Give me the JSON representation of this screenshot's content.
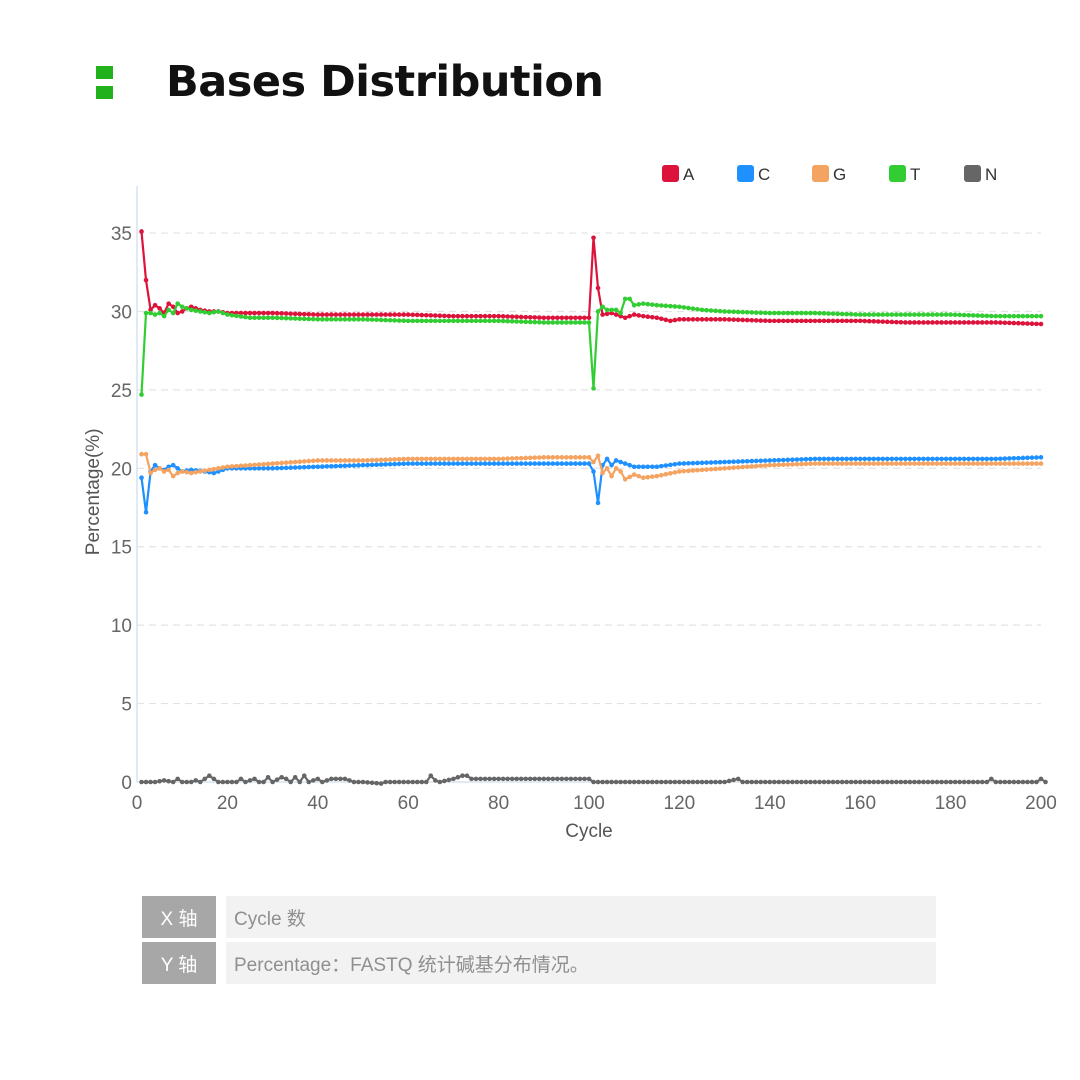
{
  "header": {
    "title": "Bases Distribution",
    "accent_color": "#21b11c"
  },
  "axis_info": [
    {
      "key": "X 轴",
      "value": "Cycle 数"
    },
    {
      "key": "Y 轴",
      "value": "Percentage：FASTQ 统计碱基分布情况。"
    }
  ],
  "chart_data": {
    "type": "line",
    "title": "",
    "xlabel": "Cycle",
    "ylabel": "Percentage(%)",
    "xlim": [
      0,
      200
    ],
    "ylim": [
      0,
      38
    ],
    "xticks": [
      0,
      20,
      40,
      60,
      80,
      100,
      120,
      140,
      160,
      180,
      200
    ],
    "yticks": [
      0,
      5,
      10,
      15,
      20,
      25,
      30,
      35
    ],
    "grid": "horizontal dashed",
    "legend_position": "top-right",
    "series": [
      {
        "name": "A",
        "color": "#dc143c",
        "points": [
          [
            1,
            35.1
          ],
          [
            2,
            32.0
          ],
          [
            3,
            30.1
          ],
          [
            4,
            30.4
          ],
          [
            5,
            30.2
          ],
          [
            6,
            29.9
          ],
          [
            7,
            30.5
          ],
          [
            8,
            30.3
          ],
          [
            9,
            29.9
          ],
          [
            10,
            30.0
          ],
          [
            11,
            30.2
          ],
          [
            12,
            30.3
          ],
          [
            14,
            30.1
          ],
          [
            16,
            30.0
          ],
          [
            18,
            30.0
          ],
          [
            20,
            29.9
          ],
          [
            25,
            29.9
          ],
          [
            30,
            29.9
          ],
          [
            40,
            29.8
          ],
          [
            50,
            29.8
          ],
          [
            60,
            29.8
          ],
          [
            70,
            29.7
          ],
          [
            80,
            29.7
          ],
          [
            90,
            29.6
          ],
          [
            100,
            29.6
          ],
          [
            101,
            34.7
          ],
          [
            102,
            31.5
          ],
          [
            103,
            29.8
          ],
          [
            105,
            29.9
          ],
          [
            107,
            29.7
          ],
          [
            108,
            29.6
          ],
          [
            110,
            29.8
          ],
          [
            112,
            29.7
          ],
          [
            115,
            29.6
          ],
          [
            118,
            29.4
          ],
          [
            120,
            29.5
          ],
          [
            130,
            29.5
          ],
          [
            140,
            29.4
          ],
          [
            150,
            29.4
          ],
          [
            160,
            29.4
          ],
          [
            170,
            29.3
          ],
          [
            180,
            29.3
          ],
          [
            190,
            29.3
          ],
          [
            200,
            29.2
          ]
        ]
      },
      {
        "name": "C",
        "color": "#1e90ff",
        "points": [
          [
            1,
            19.4
          ],
          [
            2,
            17.2
          ],
          [
            3,
            19.8
          ],
          [
            4,
            20.2
          ],
          [
            5,
            20.0
          ],
          [
            6,
            19.9
          ],
          [
            7,
            20.1
          ],
          [
            8,
            20.2
          ],
          [
            9,
            20.0
          ],
          [
            10,
            19.8
          ],
          [
            12,
            19.9
          ],
          [
            15,
            19.8
          ],
          [
            17,
            19.7
          ],
          [
            20,
            20.0
          ],
          [
            30,
            20.0
          ],
          [
            40,
            20.1
          ],
          [
            50,
            20.2
          ],
          [
            60,
            20.3
          ],
          [
            70,
            20.3
          ],
          [
            80,
            20.3
          ],
          [
            90,
            20.3
          ],
          [
            100,
            20.3
          ],
          [
            101,
            19.8
          ],
          [
            102,
            17.8
          ],
          [
            103,
            20.2
          ],
          [
            104,
            20.6
          ],
          [
            105,
            20.2
          ],
          [
            106,
            20.5
          ],
          [
            108,
            20.3
          ],
          [
            110,
            20.1
          ],
          [
            115,
            20.1
          ],
          [
            120,
            20.3
          ],
          [
            130,
            20.4
          ],
          [
            140,
            20.5
          ],
          [
            150,
            20.6
          ],
          [
            160,
            20.6
          ],
          [
            170,
            20.6
          ],
          [
            180,
            20.6
          ],
          [
            190,
            20.6
          ],
          [
            200,
            20.7
          ]
        ]
      },
      {
        "name": "G",
        "color": "#f4a460",
        "points": [
          [
            1,
            20.9
          ],
          [
            2,
            20.9
          ],
          [
            3,
            19.7
          ],
          [
            4,
            19.9
          ],
          [
            5,
            20.0
          ],
          [
            6,
            19.8
          ],
          [
            7,
            19.9
          ],
          [
            8,
            19.5
          ],
          [
            9,
            19.7
          ],
          [
            10,
            19.8
          ],
          [
            12,
            19.7
          ],
          [
            14,
            19.8
          ],
          [
            16,
            19.9
          ],
          [
            20,
            20.1
          ],
          [
            30,
            20.3
          ],
          [
            40,
            20.5
          ],
          [
            50,
            20.5
          ],
          [
            60,
            20.6
          ],
          [
            70,
            20.6
          ],
          [
            80,
            20.6
          ],
          [
            90,
            20.7
          ],
          [
            100,
            20.7
          ],
          [
            101,
            20.4
          ],
          [
            102,
            20.8
          ],
          [
            103,
            19.7
          ],
          [
            104,
            20.0
          ],
          [
            105,
            19.5
          ],
          [
            106,
            20.0
          ],
          [
            107,
            19.8
          ],
          [
            108,
            19.3
          ],
          [
            110,
            19.6
          ],
          [
            112,
            19.4
          ],
          [
            115,
            19.5
          ],
          [
            120,
            19.8
          ],
          [
            130,
            20.0
          ],
          [
            140,
            20.2
          ],
          [
            150,
            20.3
          ],
          [
            160,
            20.3
          ],
          [
            170,
            20.3
          ],
          [
            180,
            20.3
          ],
          [
            190,
            20.3
          ],
          [
            200,
            20.3
          ]
        ]
      },
      {
        "name": "T",
        "color": "#32cd32",
        "points": [
          [
            1,
            24.7
          ],
          [
            2,
            29.9
          ],
          [
            3,
            29.9
          ],
          [
            4,
            29.8
          ],
          [
            5,
            29.9
          ],
          [
            6,
            29.7
          ],
          [
            7,
            30.1
          ],
          [
            8,
            29.9
          ],
          [
            9,
            30.5
          ],
          [
            10,
            30.3
          ],
          [
            12,
            30.1
          ],
          [
            14,
            30.0
          ],
          [
            16,
            29.9
          ],
          [
            18,
            30.0
          ],
          [
            20,
            29.8
          ],
          [
            25,
            29.6
          ],
          [
            30,
            29.6
          ],
          [
            40,
            29.5
          ],
          [
            50,
            29.5
          ],
          [
            60,
            29.4
          ],
          [
            70,
            29.4
          ],
          [
            80,
            29.4
          ],
          [
            90,
            29.3
          ],
          [
            100,
            29.3
          ],
          [
            101,
            25.1
          ],
          [
            102,
            30.0
          ],
          [
            103,
            30.3
          ],
          [
            104,
            30.1
          ],
          [
            106,
            30.1
          ],
          [
            107,
            29.9
          ],
          [
            108,
            30.8
          ],
          [
            109,
            30.8
          ],
          [
            110,
            30.4
          ],
          [
            112,
            30.5
          ],
          [
            115,
            30.4
          ],
          [
            120,
            30.3
          ],
          [
            125,
            30.1
          ],
          [
            130,
            30.0
          ],
          [
            140,
            29.9
          ],
          [
            150,
            29.9
          ],
          [
            160,
            29.8
          ],
          [
            170,
            29.8
          ],
          [
            180,
            29.8
          ],
          [
            190,
            29.7
          ],
          [
            200,
            29.7
          ]
        ]
      },
      {
        "name": "N",
        "color": "#666666",
        "points": [
          [
            1,
            0.0
          ],
          [
            4,
            0.0
          ],
          [
            6,
            0.1
          ],
          [
            8,
            0.0
          ],
          [
            9,
            0.2
          ],
          [
            10,
            0.0
          ],
          [
            12,
            0.0
          ],
          [
            13,
            0.1
          ],
          [
            14,
            0.0
          ],
          [
            16,
            0.4
          ],
          [
            17,
            0.2
          ],
          [
            18,
            0.0
          ],
          [
            22,
            0.0
          ],
          [
            23,
            0.2
          ],
          [
            24,
            0.0
          ],
          [
            26,
            0.2
          ],
          [
            27,
            0.0
          ],
          [
            28,
            0.0
          ],
          [
            29,
            0.3
          ],
          [
            30,
            0.0
          ],
          [
            32,
            0.3
          ],
          [
            33,
            0.2
          ],
          [
            34,
            0.0
          ],
          [
            35,
            0.3
          ],
          [
            36,
            0.0
          ],
          [
            37,
            0.4
          ],
          [
            38,
            0.0
          ],
          [
            40,
            0.2
          ],
          [
            41,
            0.0
          ],
          [
            43,
            0.2
          ],
          [
            44,
            0.2
          ],
          [
            46,
            0.2
          ],
          [
            48,
            0.0
          ],
          [
            50,
            0.0
          ],
          [
            54,
            -0.1
          ],
          [
            55,
            0.0
          ],
          [
            60,
            0.0
          ],
          [
            64,
            0.0
          ],
          [
            65,
            0.4
          ],
          [
            66,
            0.1
          ],
          [
            67,
            0.0
          ],
          [
            70,
            0.2
          ],
          [
            72,
            0.4
          ],
          [
            73,
            0.4
          ],
          [
            74,
            0.2
          ],
          [
            80,
            0.2
          ],
          [
            90,
            0.2
          ],
          [
            100,
            0.2
          ],
          [
            101,
            0.0
          ],
          [
            110,
            0.0
          ],
          [
            120,
            0.0
          ],
          [
            130,
            0.0
          ],
          [
            133,
            0.2
          ],
          [
            134,
            0.0
          ],
          [
            150,
            0.0
          ],
          [
            170,
            0.0
          ],
          [
            188,
            0.0
          ],
          [
            189,
            0.2
          ],
          [
            190,
            0.0
          ],
          [
            199,
            0.0
          ],
          [
            200,
            0.2
          ],
          [
            201,
            0.0
          ]
        ]
      }
    ]
  }
}
